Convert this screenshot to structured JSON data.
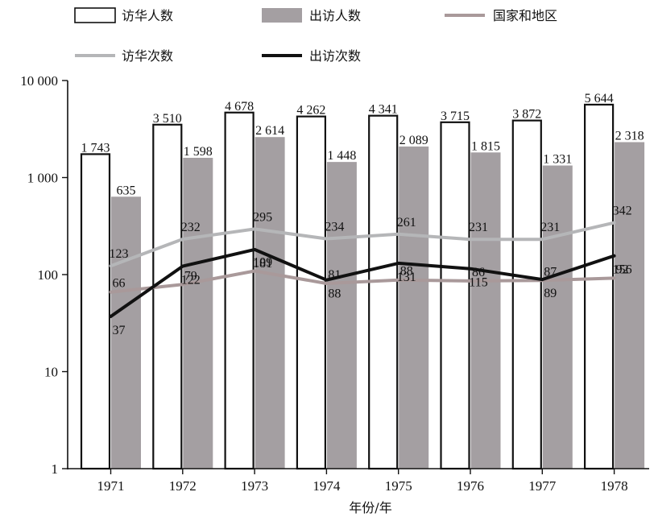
{
  "chart_data": {
    "type": "bar",
    "y_scale": "log",
    "ylim": [
      1,
      10000
    ],
    "y_ticks": [
      {
        "value": 1,
        "label": "1"
      },
      {
        "value": 10,
        "label": "10"
      },
      {
        "value": 100,
        "label": "100"
      },
      {
        "value": 1000,
        "label": "1 000"
      },
      {
        "value": 10000,
        "label": "10 000"
      }
    ],
    "categories": [
      "1971",
      "1972",
      "1973",
      "1974",
      "1975",
      "1976",
      "1977",
      "1978"
    ],
    "xlabel": "年份/年",
    "ylabel": "",
    "legend_position": "top",
    "bar_series": [
      {
        "name": "访华人数",
        "color": "#ffffff",
        "stroke": "#111111",
        "values": [
          1743,
          3510,
          4678,
          4262,
          4341,
          3715,
          3872,
          5644
        ],
        "labels": [
          "1 743",
          "3 510",
          "4 678",
          "4 262",
          "4 341",
          "3 715",
          "3 872",
          "5 644"
        ]
      },
      {
        "name": "出访人数",
        "color": "#a49fa2",
        "stroke": "none",
        "values": [
          635,
          1598,
          2614,
          1448,
          2089,
          1815,
          1331,
          2318
        ],
        "labels": [
          "635",
          "1 598",
          "2 614",
          "1 448",
          "2 089",
          "1 815",
          "1 331",
          "2 318"
        ]
      }
    ],
    "line_series": [
      {
        "name": "国家和地区",
        "color": "#a9999a",
        "values": [
          66,
          79,
          109,
          81,
          88,
          86,
          87,
          92
        ],
        "labels": [
          "66",
          "79",
          "109",
          "81",
          "88",
          "86",
          "87",
          "92"
        ]
      },
      {
        "name": "访华次数",
        "color": "#b5b6b8",
        "values": [
          123,
          232,
          295,
          234,
          261,
          231,
          231,
          342
        ],
        "labels": [
          "123",
          "232",
          "295",
          "234",
          "261",
          "231",
          "231",
          "342"
        ]
      },
      {
        "name": "出访次数",
        "color": "#111111",
        "values": [
          37,
          122,
          181,
          88,
          131,
          115,
          89,
          156
        ],
        "labels": [
          "37",
          "122",
          "181",
          "88",
          "131",
          "115",
          "89",
          "156"
        ]
      }
    ]
  }
}
